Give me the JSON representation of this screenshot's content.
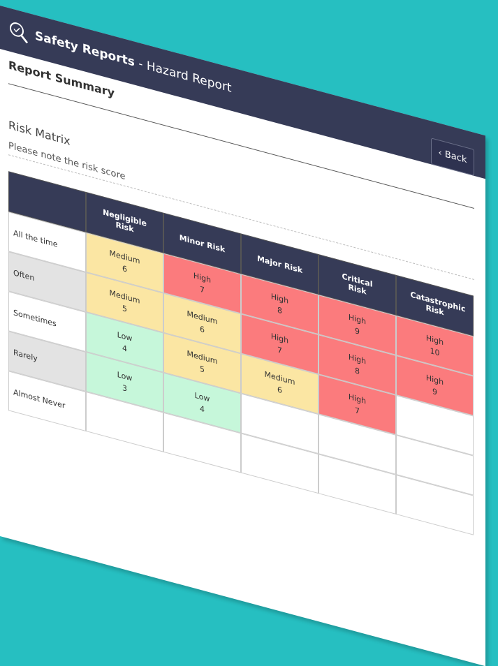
{
  "header": {
    "app_title": "Safety Reports",
    "page_title": "- Hazard Report",
    "back_button": "Back"
  },
  "section_title": "Report Summary",
  "risk_matrix": {
    "title": "Risk Matrix",
    "note": "Please note the risk score",
    "columns": [
      "Negligible Risk",
      "Minor Risk",
      "Major Risk",
      "Critical Risk",
      "Catastrophic Risk"
    ],
    "rows": [
      {
        "label": "All the time",
        "cells": [
          {
            "level": "Medium",
            "score": 6,
            "color": "#fbe6a3"
          },
          {
            "level": "High",
            "score": 7,
            "color": "#fb7b7d"
          },
          {
            "level": "High",
            "score": 8,
            "color": "#fb7b7d"
          },
          {
            "level": "High",
            "score": 9,
            "color": "#fb7b7d"
          },
          {
            "level": "High",
            "score": 10,
            "color": "#fb7b7d"
          }
        ]
      },
      {
        "label": "Often",
        "cells": [
          {
            "level": "Medium",
            "score": 5,
            "color": "#fbe6a3"
          },
          {
            "level": "Medium",
            "score": 6,
            "color": "#fbe6a3"
          },
          {
            "level": "High",
            "score": 7,
            "color": "#fb7b7d"
          },
          {
            "level": "High",
            "score": 8,
            "color": "#fb7b7d"
          },
          {
            "level": "High",
            "score": 9,
            "color": "#fb7b7d"
          }
        ]
      },
      {
        "label": "Sometimes",
        "cells": [
          {
            "level": "Low",
            "score": 4,
            "color": "#c6f7da"
          },
          {
            "level": "Medium",
            "score": 5,
            "color": "#fbe6a3"
          },
          {
            "level": "Medium",
            "score": 6,
            "color": "#fbe6a3"
          },
          {
            "level": "High",
            "score": 7,
            "color": "#fb7b7d"
          }
        ]
      },
      {
        "label": "Rarely",
        "cells": [
          {
            "level": "Low",
            "score": 3,
            "color": "#c6f7da"
          },
          {
            "level": "Low",
            "score": 4,
            "color": "#c6f7da"
          }
        ]
      },
      {
        "label": "Almost Never",
        "cells": []
      }
    ]
  }
}
